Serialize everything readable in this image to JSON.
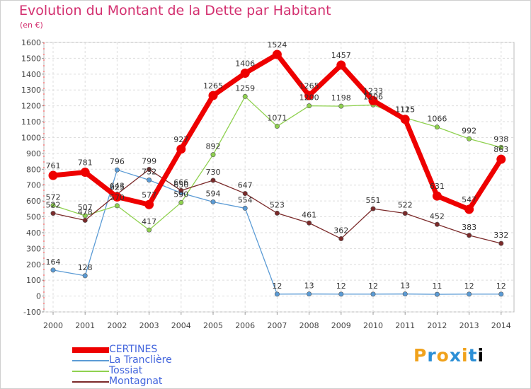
{
  "chart_data": {
    "type": "line",
    "title": "Evolution du Montant de la Dette par Habitant",
    "subtitle": "(en €)",
    "categories": [
      "2000",
      "2001",
      "2002",
      "2003",
      "2004",
      "2005",
      "2006",
      "2007",
      "2008",
      "2009",
      "2010",
      "2011",
      "2012",
      "2013",
      "2014"
    ],
    "ylim": [
      -100,
      1600
    ],
    "yticks": [
      "-100",
      "0",
      "100",
      "200",
      "300",
      "400",
      "500",
      "600",
      "700",
      "800",
      "900",
      "1000",
      "1100",
      "1200",
      "1300",
      "1400",
      "1500",
      "1600"
    ],
    "grid": true,
    "legend_position": "bottom-left",
    "series": [
      {
        "name": "CERTINES",
        "color": "#ee0000",
        "values": [
          761,
          781,
          625,
          577,
          927,
          1265,
          1406,
          1524,
          1265,
          1457,
          1233,
          1115,
          631,
          547,
          863
        ],
        "labels": [
          "761",
          "781",
          "625",
          "577",
          "927",
          "1265",
          "1406",
          "1524",
          "1265",
          "1457",
          "1233",
          "1115",
          "631",
          "547",
          "863"
        ]
      },
      {
        "name": "La Tranclière",
        "color": "#5b9bd5",
        "values": [
          164,
          128,
          796,
          732,
          650,
          594,
          554,
          12,
          13,
          12,
          12,
          13,
          11,
          12,
          12
        ],
        "labels": [
          "164",
          "128",
          "796",
          "732",
          "650",
          "594",
          "554",
          "12",
          "13",
          "12",
          "12",
          "13",
          "11",
          "12",
          "12"
        ]
      },
      {
        "name": "Tossiat",
        "color": "#8fd14f",
        "values": [
          572,
          507,
          570,
          417,
          590,
          892,
          1259,
          1071,
          1200,
          1198,
          1206,
          1125,
          1066,
          992,
          938
        ],
        "labels": [
          "572",
          "507",
          "570",
          "417",
          "590",
          "892",
          "1259",
          "1071",
          "1200",
          "1198",
          "1206",
          "1125",
          "1066",
          "992",
          "938"
        ]
      },
      {
        "name": "Montagnat",
        "color": "#7b2a2a",
        "values": [
          522,
          478,
          643,
          799,
          666,
          730,
          647,
          523,
          461,
          362,
          551,
          522,
          452,
          383,
          332
        ],
        "labels": [
          "522",
          "478",
          "643",
          "799",
          "666",
          "730",
          "647",
          "523",
          "461",
          "362",
          "551",
          "522",
          "452",
          "383",
          "332"
        ]
      }
    ]
  },
  "legend_text_color": "#4466dd",
  "logo": {
    "letters": [
      "P",
      "r",
      "o",
      "x",
      "i",
      "t",
      "i"
    ]
  }
}
